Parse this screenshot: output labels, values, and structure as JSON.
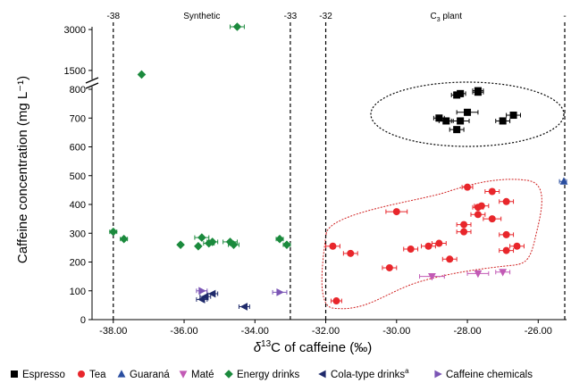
{
  "chart_data": {
    "type": "scatter",
    "title": "",
    "xlabel": {
      "delta": "δ",
      "sup": "13",
      "rest": "C  of caffeine (‰)"
    },
    "ylabel": "Caffeine concentration (mg L⁻¹)",
    "xlim": [
      -38.6,
      -25.2
    ],
    "x_ticks": [
      -38.0,
      -36.0,
      -34.0,
      -32.0,
      -30.0,
      -28.0,
      -26.0
    ],
    "x_tick_labels": [
      "-38.00",
      "-36.00",
      "-34.00",
      "-32.00",
      "-30.00",
      "-28.00",
      "-26.00"
    ],
    "y_axis_lower": {
      "range": [
        0,
        800
      ],
      "ticks": [
        0,
        100,
        200,
        300,
        400,
        500,
        600,
        700,
        800
      ]
    },
    "y_axis_upper": {
      "range": [
        1300,
        3100
      ],
      "ticks": [
        1500,
        3000
      ]
    },
    "y_break": [
      800,
      1300
    ],
    "reference_lines": [
      {
        "x": -38,
        "label": "-38"
      },
      {
        "x": -33,
        "label": "-33"
      },
      {
        "x": -32,
        "label": "-32"
      },
      {
        "x": -25.2,
        "label": "-"
      }
    ],
    "regions": [
      {
        "label": "Synthetic",
        "x_range": [
          -38,
          -33
        ]
      },
      {
        "label": "C",
        "sub": "3",
        "suffix": " plant",
        "x_range": [
          -32,
          -25.2
        ]
      }
    ],
    "series": [
      {
        "name": "Espresso",
        "marker": "square",
        "color": "#000000",
        "points": [
          [
            -28.3,
            780
          ],
          [
            -28.2,
            785
          ],
          [
            -27.7,
            790
          ],
          [
            -27.7,
            795
          ],
          [
            -28.0,
            720
          ],
          [
            -28.2,
            690
          ],
          [
            -28.6,
            690
          ],
          [
            -28.8,
            700
          ],
          [
            -27.0,
            690
          ],
          [
            -26.7,
            710
          ],
          [
            -28.3,
            660
          ]
        ],
        "xerr": [
          0.15,
          0.15,
          0.15,
          0.15,
          0.3,
          0.25,
          0.2,
          0.15,
          0.2,
          0.2,
          0.2
        ]
      },
      {
        "name": "Tea",
        "marker": "circle",
        "color": "#e8262b",
        "points": [
          [
            -28.0,
            460
          ],
          [
            -27.3,
            445
          ],
          [
            -27.6,
            395
          ],
          [
            -27.7,
            390
          ],
          [
            -26.9,
            410
          ],
          [
            -30.0,
            375
          ],
          [
            -27.3,
            350
          ],
          [
            -27.7,
            365
          ],
          [
            -28.1,
            330
          ],
          [
            -28.1,
            305
          ],
          [
            -28.8,
            265
          ],
          [
            -29.1,
            255
          ],
          [
            -29.6,
            245
          ],
          [
            -26.6,
            255
          ],
          [
            -26.9,
            240
          ],
          [
            -26.9,
            295
          ],
          [
            -31.3,
            230
          ],
          [
            -31.8,
            255
          ],
          [
            -28.5,
            210
          ],
          [
            -30.2,
            180
          ],
          [
            -31.7,
            65
          ]
        ],
        "xerr": [
          0.15,
          0.2,
          0.2,
          0.15,
          0.2,
          0.3,
          0.25,
          0.2,
          0.2,
          0.2,
          0.2,
          0.2,
          0.2,
          0.2,
          0.2,
          0.2,
          0.2,
          0.2,
          0.2,
          0.2,
          0.15
        ]
      },
      {
        "name": "Guaraná",
        "marker": "triangle-up",
        "color": "#2a4ea0",
        "points": [
          [
            -25.2,
            480
          ]
        ],
        "xerr": [
          0.2
        ]
      },
      {
        "name": "Maté",
        "marker": "triangle-down",
        "color": "#c25ab5",
        "points": [
          [
            -29.0,
            150
          ],
          [
            -27.7,
            160
          ],
          [
            -27.0,
            165
          ]
        ],
        "xerr": [
          0.35,
          0.3,
          0.2
        ]
      },
      {
        "name": "Energy drinks",
        "marker": "diamond",
        "color": "#1b8a3d",
        "points": [
          [
            -34.5,
            3100
          ],
          [
            -37.2,
            1350
          ],
          [
            -38.0,
            305
          ],
          [
            -37.7,
            280
          ],
          [
            -35.5,
            285
          ],
          [
            -35.2,
            270
          ],
          [
            -35.3,
            265
          ],
          [
            -34.7,
            270
          ],
          [
            -34.6,
            260
          ],
          [
            -36.1,
            260
          ],
          [
            -35.6,
            255
          ],
          [
            -33.3,
            280
          ],
          [
            -33.1,
            260
          ]
        ],
        "xerr": [
          0.2,
          0,
          0.1,
          0.1,
          0.2,
          0.15,
          0.15,
          0.2,
          0.15,
          0,
          0,
          0.1,
          0.1
        ]
      },
      {
        "name": "Cola-type drinks",
        "sup": "a",
        "marker": "triangle-left",
        "color": "#1f2a6b",
        "points": [
          [
            -35.2,
            90
          ],
          [
            -35.4,
            80
          ],
          [
            -35.5,
            70
          ],
          [
            -34.3,
            45
          ]
        ],
        "xerr": [
          0.15,
          0.15,
          0.15,
          0.15
        ]
      },
      {
        "name": "Caffeine chemicals",
        "marker": "triangle-right",
        "color": "#7b55b5",
        "points": [
          [
            -35.5,
            100
          ],
          [
            -33.3,
            95
          ]
        ],
        "xerr": [
          0.15,
          0.2
        ]
      }
    ],
    "legend_position": "bottom",
    "grid": false
  }
}
